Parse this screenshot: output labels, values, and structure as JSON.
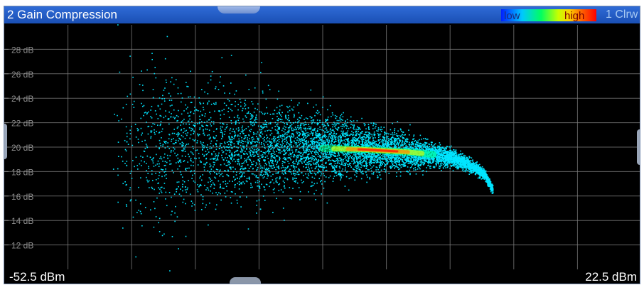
{
  "window": {
    "title": "2 Gain Compression",
    "trace_label": "1 Clrw",
    "colorbar": {
      "low_label": "low",
      "high_label": "high"
    },
    "footer": {
      "left": "-52.5 dBm",
      "right": "22.5 dBm"
    }
  },
  "colors": {
    "background": "#000000",
    "titlebar": "#1a4fb4",
    "grid": "#808080",
    "tick_text": "#8c8c8c",
    "trace_density_low": "#00e5ff",
    "trace_density_high": "#ff2000"
  },
  "chart_data": {
    "type": "scatter",
    "title": "2 Gain Compression",
    "xlabel": "",
    "ylabel": "",
    "xlim": [
      -52.5,
      22.5
    ],
    "ylim": [
      10,
      30
    ],
    "x_unit": "dBm",
    "y_unit": "dB",
    "grid": true,
    "yticks": [
      "28 dB",
      "26 dB",
      "24 dB",
      "22 dB",
      "20 dB",
      "18 dB",
      "16 dB",
      "14 dB",
      "12 dB"
    ],
    "ytick_values": [
      28,
      26,
      24,
      22,
      20,
      18,
      16,
      14,
      12
    ],
    "x_grid_divisions": 10,
    "series": [
      {
        "style": "density-persistence",
        "curve": [
          {
            "x": -40,
            "y": 20.0
          },
          {
            "x": -30,
            "y": 20.0
          },
          {
            "x": -20,
            "y": 19.9
          },
          {
            "x": -15,
            "y": 19.9
          },
          {
            "x": -10,
            "y": 19.8
          },
          {
            "x": -5,
            "y": 19.6
          },
          {
            "x": -2,
            "y": 19.4
          },
          {
            "x": 0,
            "y": 19.2
          },
          {
            "x": 2,
            "y": 18.7
          },
          {
            "x": 4,
            "y": 17.8
          },
          {
            "x": 5,
            "y": 16.5
          }
        ],
        "peak_density_x_range": [
          -15,
          -2
        ],
        "peak_density_y": 19.6
      }
    ]
  }
}
